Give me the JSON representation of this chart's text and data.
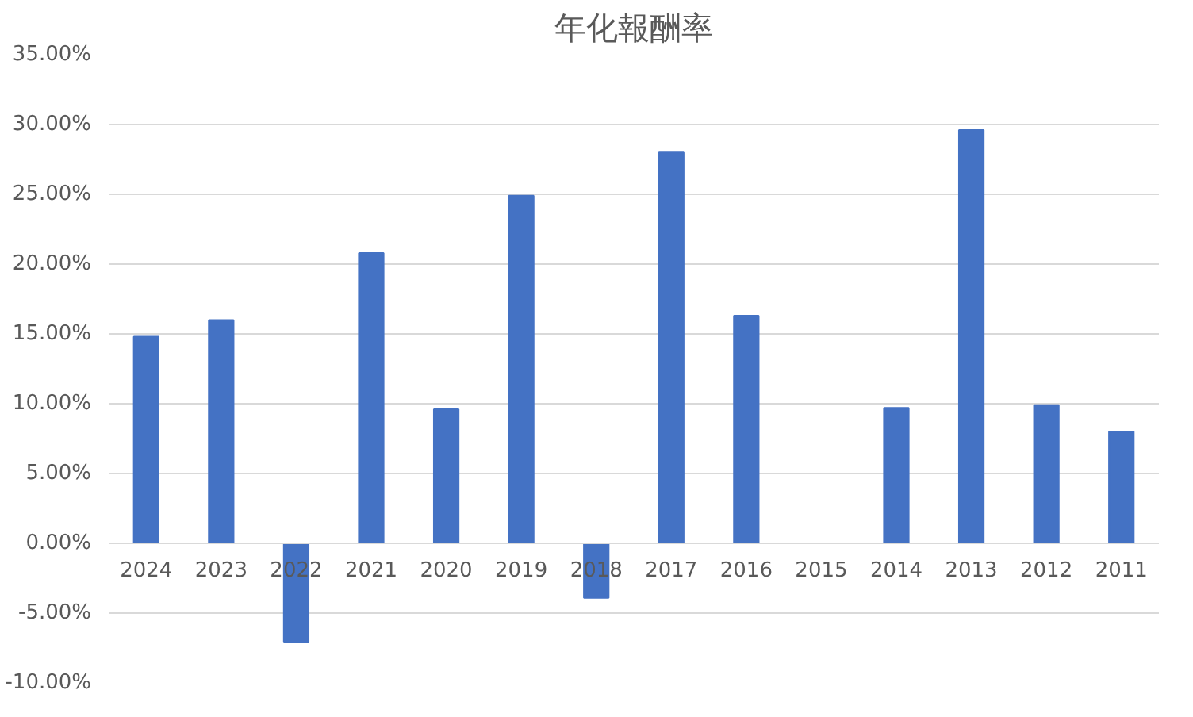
{
  "chart_data": {
    "type": "bar",
    "title": "年化報酬率",
    "categories": [
      "2024",
      "2023",
      "2022",
      "2021",
      "2020",
      "2019",
      "2018",
      "2017",
      "2016",
      "2015",
      "2014",
      "2013",
      "2012",
      "2011"
    ],
    "values": [
      14.8,
      16.0,
      -7.1,
      20.8,
      9.6,
      24.9,
      -3.9,
      28.0,
      16.3,
      0,
      9.7,
      29.6,
      9.9,
      8.0
    ],
    "color": "#4472c4",
    "ylim": [
      -10,
      35
    ],
    "yticks": [
      {
        "value": -10,
        "label": "-10.00%"
      },
      {
        "value": -5,
        "label": "-5.00%"
      },
      {
        "value": 0,
        "label": "0.00%"
      },
      {
        "value": 5,
        "label": "5.00%"
      },
      {
        "value": 10,
        "label": "10.00%"
      },
      {
        "value": 15,
        "label": "15.00%"
      },
      {
        "value": 20,
        "label": "20.00%"
      },
      {
        "value": 25,
        "label": "25.00%"
      },
      {
        "value": 30,
        "label": "30.00%"
      },
      {
        "value": 35,
        "label": "35.00%"
      }
    ],
    "grid": "y"
  }
}
